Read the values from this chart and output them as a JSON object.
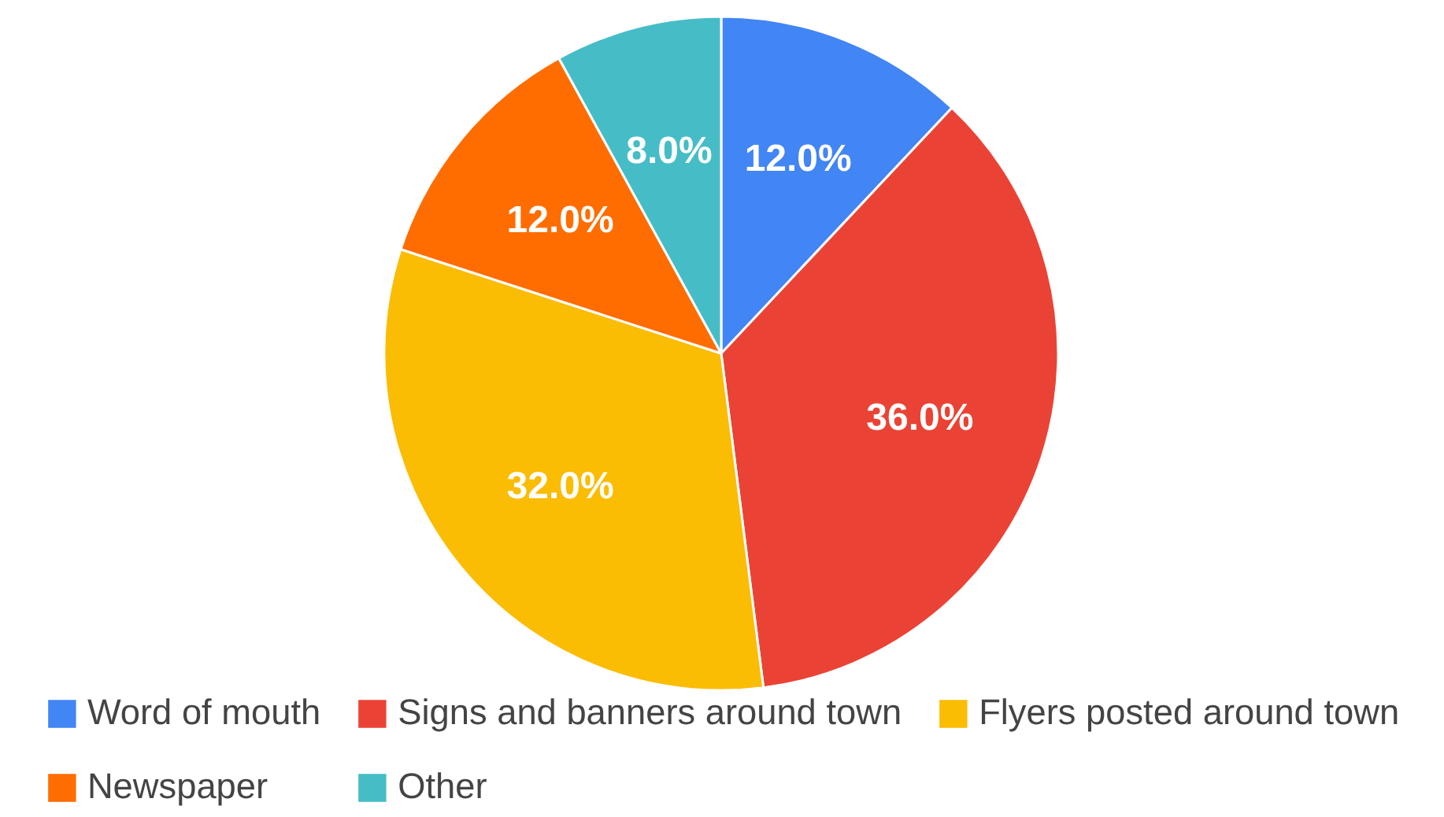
{
  "chart_data": {
    "type": "pie",
    "categories": [
      "Word of mouth",
      "Signs and banners around town",
      "Flyers posted around town",
      "Newspaper",
      "Other"
    ],
    "values": [
      12,
      36,
      32,
      12,
      8
    ],
    "colors": [
      "#4285f4",
      "#ea4335",
      "#fbbc04",
      "#ff6d01",
      "#46bdc6"
    ],
    "value_labels": [
      "12.0%",
      "36.0%",
      "32.0%",
      "12.0%",
      "8.0%"
    ],
    "legend": "bottom"
  }
}
